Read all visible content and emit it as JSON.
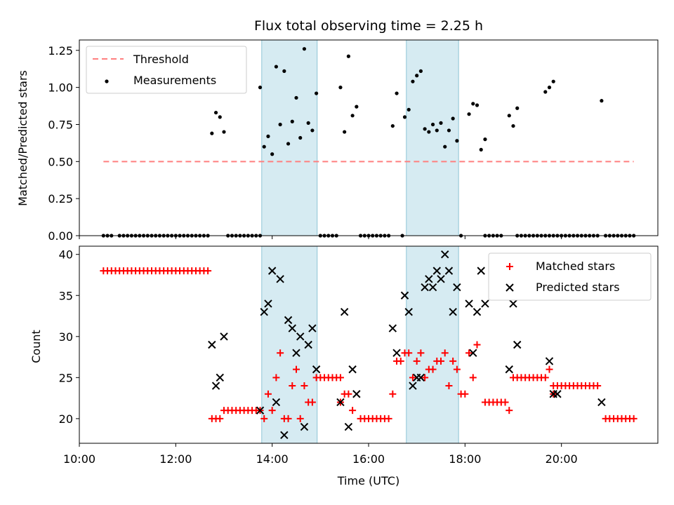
{
  "chart_data": [
    {
      "type": "scatter",
      "title": "Flux total observing time = 2.25 h",
      "xlabel": "",
      "ylabel": "Matched/Predicted stars",
      "xlim": [
        "10:00",
        "22:00"
      ],
      "ylim": [
        0,
        1.32
      ],
      "yticks": [
        "0.00",
        "0.25",
        "0.50",
        "0.75",
        "1.00",
        "1.25"
      ],
      "legend": {
        "location": "top-left",
        "entries": [
          "Threshold",
          "Measurements"
        ]
      },
      "shaded_intervals": [
        [
          "13:47",
          "14:56"
        ],
        [
          "16:47",
          "17:52"
        ]
      ],
      "threshold": {
        "name": "Threshold",
        "value": 0.5,
        "x_range": [
          "10:30",
          "21:30"
        ],
        "color": "#ff7f7f"
      },
      "series": [
        {
          "name": "Measurements",
          "color": "#000000",
          "zero_runs": [
            [
              "10:30",
              "10:40"
            ],
            [
              "10:50",
              "12:40"
            ],
            [
              "13:05",
              "13:45"
            ],
            [
              "15:00",
              "15:20"
            ],
            [
              "15:50",
              "16:25"
            ],
            [
              "16:42",
              "16:45"
            ],
            [
              "17:55",
              "17:59"
            ],
            [
              "18:25",
              "18:47"
            ],
            [
              "19:05",
              "19:30"
            ],
            [
              "19:35",
              "20:45"
            ],
            [
              "20:55",
              "21:30"
            ]
          ],
          "points": [
            [
              "12:45",
              0.69
            ],
            [
              "12:50",
              0.83
            ],
            [
              "12:55",
              0.8
            ],
            [
              "13:00",
              0.7
            ],
            [
              "13:45",
              1.0
            ],
            [
              "13:50",
              0.6
            ],
            [
              "13:55",
              0.67
            ],
            [
              "14:00",
              0.55
            ],
            [
              "14:05",
              1.14
            ],
            [
              "14:10",
              0.75
            ],
            [
              "14:15",
              1.11
            ],
            [
              "14:20",
              0.62
            ],
            [
              "14:25",
              0.77
            ],
            [
              "14:30",
              0.93
            ],
            [
              "14:35",
              0.66
            ],
            [
              "14:40",
              1.26
            ],
            [
              "14:45",
              0.76
            ],
            [
              "14:50",
              0.71
            ],
            [
              "14:55",
              0.96
            ],
            [
              "15:25",
              1.0
            ],
            [
              "15:30",
              0.7
            ],
            [
              "15:35",
              1.21
            ],
            [
              "15:40",
              0.81
            ],
            [
              "15:45",
              0.87
            ],
            [
              "16:30",
              0.74
            ],
            [
              "16:35",
              0.96
            ],
            [
              "16:45",
              0.8
            ],
            [
              "16:50",
              0.85
            ],
            [
              "16:55",
              1.04
            ],
            [
              "17:00",
              1.08
            ],
            [
              "17:05",
              1.11
            ],
            [
              "17:10",
              0.72
            ],
            [
              "17:15",
              0.7
            ],
            [
              "17:20",
              0.75
            ],
            [
              "17:25",
              0.71
            ],
            [
              "17:30",
              0.76
            ],
            [
              "17:35",
              0.6
            ],
            [
              "17:40",
              0.71
            ],
            [
              "17:45",
              0.79
            ],
            [
              "17:50",
              0.64
            ],
            [
              "18:05",
              0.82
            ],
            [
              "18:10",
              0.89
            ],
            [
              "18:15",
              0.88
            ],
            [
              "18:20",
              0.58
            ],
            [
              "18:25",
              0.65
            ],
            [
              "18:55",
              0.81
            ],
            [
              "19:00",
              0.74
            ],
            [
              "19:05",
              0.86
            ],
            [
              "19:40",
              0.97
            ],
            [
              "19:45",
              1.0
            ],
            [
              "19:50",
              1.04
            ],
            [
              "20:50",
              0.91
            ]
          ]
        }
      ]
    },
    {
      "type": "scatter",
      "title": "",
      "xlabel": "Time (UTC)",
      "ylabel": "Count",
      "xlim": [
        "10:00",
        "22:00"
      ],
      "ylim": [
        17,
        41
      ],
      "xticks": [
        "10:00",
        "12:00",
        "14:00",
        "16:00",
        "18:00",
        "20:00"
      ],
      "yticks": [
        "20",
        "25",
        "30",
        "35",
        "40"
      ],
      "legend": {
        "location": "top-right",
        "entries": [
          "Matched stars",
          "Predicted stars"
        ]
      },
      "shaded_intervals": [
        [
          "13:47",
          "14:56"
        ],
        [
          "16:47",
          "17:52"
        ]
      ],
      "series": [
        {
          "name": "Matched stars",
          "marker": "plus",
          "color": "#ff0000",
          "runs": [
            {
              "from": "10:30",
              "to": "12:40",
              "value": 38
            },
            {
              "from": "12:45",
              "to": "12:55",
              "value": 20
            },
            {
              "from": "13:00",
              "to": "13:45",
              "value": 21
            },
            {
              "from": "14:55",
              "to": "15:25",
              "value": 25
            },
            {
              "from": "15:50",
              "to": "16:25",
              "value": 20
            },
            {
              "from": "18:25",
              "to": "18:50",
              "value": 22
            },
            {
              "from": "19:00",
              "to": "19:40",
              "value": 25
            },
            {
              "from": "19:50",
              "to": "20:45",
              "value": 24
            },
            {
              "from": "20:55",
              "to": "21:30",
              "value": 20
            }
          ],
          "points": [
            [
              "13:50",
              20
            ],
            [
              "13:55",
              23
            ],
            [
              "14:00",
              21
            ],
            [
              "14:05",
              25
            ],
            [
              "14:10",
              28
            ],
            [
              "14:15",
              20
            ],
            [
              "14:20",
              20
            ],
            [
              "14:25",
              24
            ],
            [
              "14:30",
              26
            ],
            [
              "14:35",
              20
            ],
            [
              "14:40",
              24
            ],
            [
              "14:45",
              22
            ],
            [
              "14:50",
              22
            ],
            [
              "15:25",
              22
            ],
            [
              "15:30",
              23
            ],
            [
              "15:35",
              23
            ],
            [
              "15:40",
              21
            ],
            [
              "16:30",
              23
            ],
            [
              "16:35",
              27
            ],
            [
              "16:40",
              27
            ],
            [
              "16:45",
              28
            ],
            [
              "16:50",
              28
            ],
            [
              "16:55",
              25
            ],
            [
              "17:00",
              27
            ],
            [
              "17:05",
              28
            ],
            [
              "17:10",
              25
            ],
            [
              "17:15",
              26
            ],
            [
              "17:20",
              26
            ],
            [
              "17:25",
              27
            ],
            [
              "17:30",
              27
            ],
            [
              "17:35",
              28
            ],
            [
              "17:40",
              24
            ],
            [
              "17:45",
              27
            ],
            [
              "17:50",
              26
            ],
            [
              "17:55",
              23
            ],
            [
              "18:00",
              23
            ],
            [
              "18:05",
              28
            ],
            [
              "18:10",
              25
            ],
            [
              "18:15",
              29
            ],
            [
              "18:55",
              21
            ],
            [
              "19:45",
              26
            ],
            [
              "19:50",
              23
            ]
          ]
        },
        {
          "name": "Predicted stars",
          "marker": "x",
          "color": "#000000",
          "points": [
            [
              "12:45",
              29
            ],
            [
              "12:50",
              24
            ],
            [
              "12:55",
              25
            ],
            [
              "13:00",
              30
            ],
            [
              "13:45",
              21
            ],
            [
              "13:50",
              33
            ],
            [
              "13:55",
              34
            ],
            [
              "14:00",
              38
            ],
            [
              "14:05",
              22
            ],
            [
              "14:10",
              37
            ],
            [
              "14:15",
              18
            ],
            [
              "14:20",
              32
            ],
            [
              "14:25",
              31
            ],
            [
              "14:30",
              28
            ],
            [
              "14:35",
              30
            ],
            [
              "14:40",
              19
            ],
            [
              "14:45",
              29
            ],
            [
              "14:50",
              31
            ],
            [
              "14:55",
              26
            ],
            [
              "15:25",
              22
            ],
            [
              "15:30",
              33
            ],
            [
              "15:35",
              19
            ],
            [
              "15:40",
              26
            ],
            [
              "15:45",
              23
            ],
            [
              "16:30",
              31
            ],
            [
              "16:35",
              28
            ],
            [
              "16:45",
              35
            ],
            [
              "16:50",
              33
            ],
            [
              "16:55",
              24
            ],
            [
              "17:00",
              25
            ],
            [
              "17:05",
              25
            ],
            [
              "17:10",
              36
            ],
            [
              "17:15",
              37
            ],
            [
              "17:20",
              36
            ],
            [
              "17:25",
              38
            ],
            [
              "17:30",
              37
            ],
            [
              "17:35",
              40
            ],
            [
              "17:40",
              38
            ],
            [
              "17:45",
              33
            ],
            [
              "17:50",
              36
            ],
            [
              "18:05",
              34
            ],
            [
              "18:10",
              28
            ],
            [
              "18:15",
              33
            ],
            [
              "18:20",
              38
            ],
            [
              "18:25",
              34
            ],
            [
              "18:55",
              26
            ],
            [
              "19:00",
              34
            ],
            [
              "19:05",
              29
            ],
            [
              "19:45",
              27
            ],
            [
              "19:50",
              23
            ],
            [
              "19:55",
              23
            ],
            [
              "20:50",
              22
            ]
          ]
        }
      ]
    }
  ]
}
